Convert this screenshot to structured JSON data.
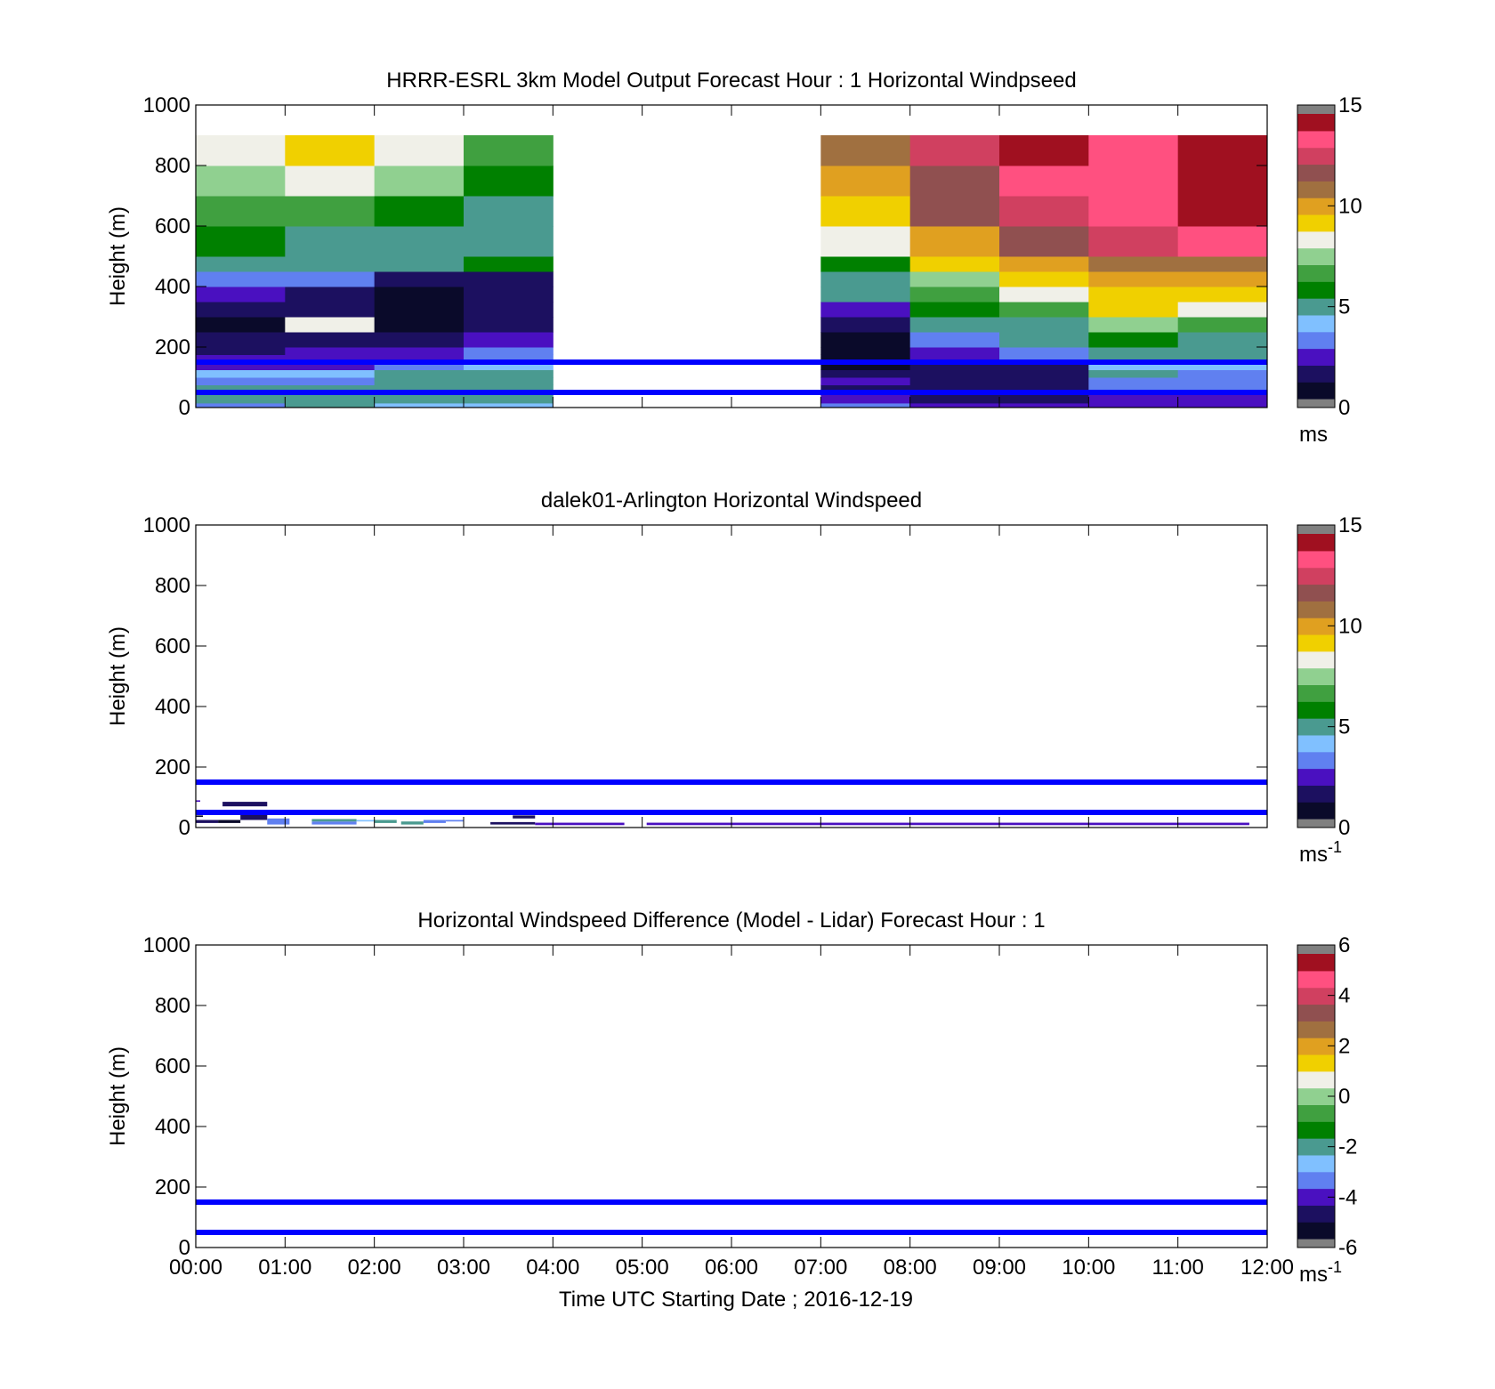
{
  "figure": {
    "xlabel": "Time UTC  Starting Date ; 2016-12-19",
    "x_ticks": [
      "00:00",
      "01:00",
      "02:00",
      "03:00",
      "04:00",
      "05:00",
      "06:00",
      "07:00",
      "08:00",
      "09:00",
      "10:00",
      "11:00",
      "12:00"
    ]
  },
  "colormap": {
    "stops": [
      "#0a0a2a",
      "#1c1060",
      "#4a10c0",
      "#6080f0",
      "#80c0ff",
      "#4a9a90",
      "#008000",
      "#40a040",
      "#90d090",
      "#f0f0e8",
      "#f0d000",
      "#e0a020",
      "#a07040",
      "#905050",
      "#d04060",
      "#ff5080",
      "#a01020"
    ],
    "over_color": "#808080",
    "under_color": "#808080"
  },
  "chart_data": [
    {
      "type": "heatmap",
      "title": "HRRR-ESRL 3km Model Output   Forecast Hour : 1 Horizontal Windpseed",
      "ylabel": "Height (m)",
      "y_ticks": [
        "0",
        "200",
        "400",
        "600",
        "800",
        "1000"
      ],
      "xlim": [
        0,
        12
      ],
      "ylim": [
        0,
        1000
      ],
      "colorbar": {
        "ticks": [
          "0",
          "5",
          "10",
          "15"
        ],
        "range": [
          0,
          15
        ],
        "unit": "ms",
        "unit_sup": ""
      },
      "reference_lines_m": [
        50,
        150
      ],
      "x_columns_hours": [
        0,
        1,
        2,
        3,
        4,
        5,
        6,
        7,
        8,
        9,
        10,
        11,
        12
      ],
      "y_levels_m": [
        0,
        15,
        30,
        50,
        75,
        100,
        125,
        150,
        175,
        200,
        250,
        300,
        350,
        400,
        450,
        500,
        600,
        700,
        800,
        900,
        1000
      ],
      "values_ms": [
        [
          3.5,
          4.5,
          4.0,
          4.2,
          null,
          null,
          null,
          3.5,
          2.0,
          1.8,
          1.8,
          1.8
        ],
        [
          4.8,
          5.0,
          5.0,
          5.0,
          null,
          null,
          null,
          2.5,
          1.5,
          1.5,
          2.0,
          2.0
        ],
        [
          4.5,
          4.8,
          5.0,
          4.8,
          null,
          null,
          null,
          2.0,
          1.0,
          1.5,
          2.5,
          2.5
        ],
        [
          5.0,
          5.0,
          4.8,
          5.0,
          null,
          null,
          null,
          1.5,
          1.0,
          1.5,
          3.0,
          3.0
        ],
        [
          3.0,
          3.5,
          4.8,
          5.0,
          null,
          null,
          null,
          2.0,
          1.2,
          1.5,
          3.5,
          3.5
        ],
        [
          3.8,
          3.8,
          4.5,
          4.5,
          null,
          null,
          null,
          1.0,
          1.5,
          1.5,
          4.5,
          3.0
        ],
        [
          2.0,
          2.0,
          3.5,
          3.8,
          null,
          null,
          null,
          0.8,
          1.5,
          1.5,
          4.0,
          4.0
        ],
        [
          2.0,
          1.8,
          2.5,
          3.0,
          null,
          null,
          null,
          0.6,
          2.0,
          3.0,
          5.0,
          5.0
        ],
        [
          1.5,
          1.8,
          2.5,
          3.5,
          null,
          null,
          null,
          0.5,
          2.0,
          3.0,
          5.0,
          5.0
        ],
        [
          1.0,
          1.0,
          1.5,
          2.5,
          null,
          null,
          null,
          0.5,
          3.5,
          5.0,
          6.0,
          5.0
        ],
        [
          0.5,
          8.0,
          0.8,
          1.5,
          null,
          null,
          null,
          1.5,
          5.0,
          5.0,
          7.5,
          6.5
        ],
        [
          1.0,
          1.0,
          0.8,
          1.5,
          null,
          null,
          null,
          2.5,
          5.5,
          6.5,
          9.0,
          8.0
        ],
        [
          2.5,
          1.5,
          0.8,
          1.0,
          null,
          null,
          null,
          4.5,
          6.5,
          8.0,
          9.5,
          9.5
        ],
        [
          3.5,
          3.0,
          1.5,
          1.0,
          null,
          null,
          null,
          5.0,
          7.5,
          9.0,
          10.0,
          10.5
        ],
        [
          5.0,
          5.0,
          5.0,
          5.5,
          null,
          null,
          null,
          5.5,
          9.0,
          10.0,
          11.0,
          11.0
        ],
        [
          5.5,
          5.0,
          4.8,
          4.5,
          null,
          null,
          null,
          8.5,
          10.5,
          11.5,
          12.5,
          13.5
        ],
        [
          6.5,
          6.5,
          6.0,
          5.0,
          null,
          null,
          null,
          9.5,
          11.5,
          13.0,
          14.0,
          15.0
        ],
        [
          7.5,
          8.0,
          7.5,
          6.0,
          null,
          null,
          null,
          10.5,
          12.0,
          14.0,
          13.5,
          15.5
        ],
        [
          8.0,
          9.0,
          8.5,
          7.0,
          null,
          null,
          null,
          11.0,
          12.5,
          14.5,
          14.0,
          15.5
        ]
      ]
    },
    {
      "type": "heatmap",
      "title": "dalek01-Arlington  Horizontal Windspeed",
      "ylabel": "Height (m)",
      "y_ticks": [
        "0",
        "200",
        "400",
        "600",
        "800",
        "1000"
      ],
      "xlim": [
        0,
        12
      ],
      "ylim": [
        0,
        1000
      ],
      "colorbar": {
        "ticks": [
          "0",
          "5",
          "10",
          "15"
        ],
        "range": [
          0,
          15
        ],
        "unit": "ms",
        "unit_sup": "-1"
      },
      "reference_lines_m": [
        50,
        150
      ],
      "patches": [
        {
          "x0": 0.0,
          "x1": 0.25,
          "y0": 15,
          "y1": 25,
          "v": 1.0
        },
        {
          "x0": 0.25,
          "x1": 0.5,
          "y0": 15,
          "y1": 25,
          "v": 0.8
        },
        {
          "x0": 0.5,
          "x1": 0.8,
          "y0": 25,
          "y1": 45,
          "v": 1.5
        },
        {
          "x0": 0.3,
          "x1": 0.8,
          "y0": 70,
          "y1": 85,
          "v": 1.5
        },
        {
          "x0": 0.0,
          "x1": 0.05,
          "y0": 85,
          "y1": 90,
          "v": 2.0
        },
        {
          "x0": 0.0,
          "x1": 0.08,
          "y0": 35,
          "y1": 40,
          "v": 0.8
        },
        {
          "x0": 0.8,
          "x1": 1.05,
          "y0": 10,
          "y1": 30,
          "v": 3.0
        },
        {
          "x0": 1.3,
          "x1": 1.8,
          "y0": 10,
          "y1": 20,
          "v": 3.0
        },
        {
          "x0": 1.3,
          "x1": 1.8,
          "y0": 20,
          "y1": 28,
          "v": 4.5
        },
        {
          "x0": 1.8,
          "x1": 2.1,
          "y0": 20,
          "y1": 25,
          "v": 4.0
        },
        {
          "x0": 2.0,
          "x1": 2.25,
          "y0": 15,
          "y1": 25,
          "v": 5.0
        },
        {
          "x0": 2.3,
          "x1": 2.55,
          "y0": 10,
          "y1": 20,
          "v": 4.8
        },
        {
          "x0": 2.55,
          "x1": 2.8,
          "y0": 15,
          "y1": 25,
          "v": 3.0
        },
        {
          "x0": 2.8,
          "x1": 3.0,
          "y0": 20,
          "y1": 25,
          "v": 3.5
        },
        {
          "x0": 3.3,
          "x1": 3.8,
          "y0": 10,
          "y1": 18,
          "v": 1.5
        },
        {
          "x0": 3.55,
          "x1": 3.8,
          "y0": 30,
          "y1": 40,
          "v": 1.5
        },
        {
          "x0": 3.8,
          "x1": 4.8,
          "y0": 8,
          "y1": 16,
          "v": 1.8
        },
        {
          "x0": 5.05,
          "x1": 11.8,
          "y0": 8,
          "y1": 16,
          "v": 2.2
        }
      ]
    },
    {
      "type": "heatmap",
      "title": "Horizontal Windspeed Difference (Model - Lidar) Forecast Hour : 1",
      "ylabel": "Height (m)",
      "y_ticks": [
        "0",
        "200",
        "400",
        "600",
        "800",
        "1000"
      ],
      "xlim": [
        0,
        12
      ],
      "ylim": [
        0,
        1000
      ],
      "colorbar": {
        "ticks": [
          "-6",
          "-4",
          "-2",
          "0",
          "2",
          "4",
          "6"
        ],
        "range": [
          -6,
          6
        ],
        "unit": "ms",
        "unit_sup": "-1"
      },
      "reference_lines_m": [
        50,
        150
      ],
      "patches": []
    }
  ]
}
